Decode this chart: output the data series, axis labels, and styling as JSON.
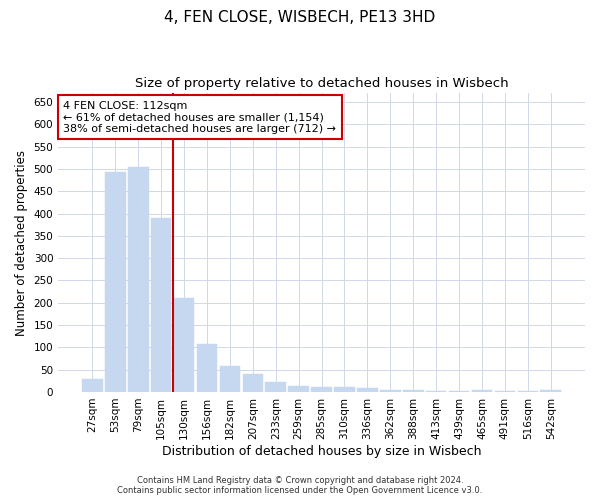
{
  "title": "4, FEN CLOSE, WISBECH, PE13 3HD",
  "subtitle": "Size of property relative to detached houses in Wisbech",
  "xlabel": "Distribution of detached houses by size in Wisbech",
  "ylabel": "Number of detached properties",
  "categories": [
    "27sqm",
    "53sqm",
    "79sqm",
    "105sqm",
    "130sqm",
    "156sqm",
    "182sqm",
    "207sqm",
    "233sqm",
    "259sqm",
    "285sqm",
    "310sqm",
    "336sqm",
    "362sqm",
    "388sqm",
    "413sqm",
    "439sqm",
    "465sqm",
    "491sqm",
    "516sqm",
    "542sqm"
  ],
  "values": [
    30,
    492,
    505,
    390,
    210,
    107,
    59,
    40,
    22,
    14,
    12,
    10,
    8,
    4,
    4,
    3,
    3,
    4,
    3,
    2,
    4
  ],
  "bar_color": "#c5d8f0",
  "bar_edge_color": "#c5d8f0",
  "vline_x": 3.5,
  "vline_color": "#cc0000",
  "annotation_text": "4 FEN CLOSE: 112sqm\n← 61% of detached houses are smaller (1,154)\n38% of semi-detached houses are larger (712) →",
  "annotation_box_color": "#ffffff",
  "annotation_box_edge": "#cc0000",
  "ylim": [
    0,
    670
  ],
  "yticks": [
    0,
    50,
    100,
    150,
    200,
    250,
    300,
    350,
    400,
    450,
    500,
    550,
    600,
    650
  ],
  "background_color": "#ffffff",
  "grid_color": "#d0d8e8",
  "footer_line1": "Contains HM Land Registry data © Crown copyright and database right 2024.",
  "footer_line2": "Contains public sector information licensed under the Open Government Licence v3.0.",
  "title_fontsize": 11,
  "subtitle_fontsize": 9.5,
  "xlabel_fontsize": 9,
  "ylabel_fontsize": 8.5,
  "tick_fontsize": 7.5,
  "annotation_fontsize": 8,
  "footer_fontsize": 6
}
